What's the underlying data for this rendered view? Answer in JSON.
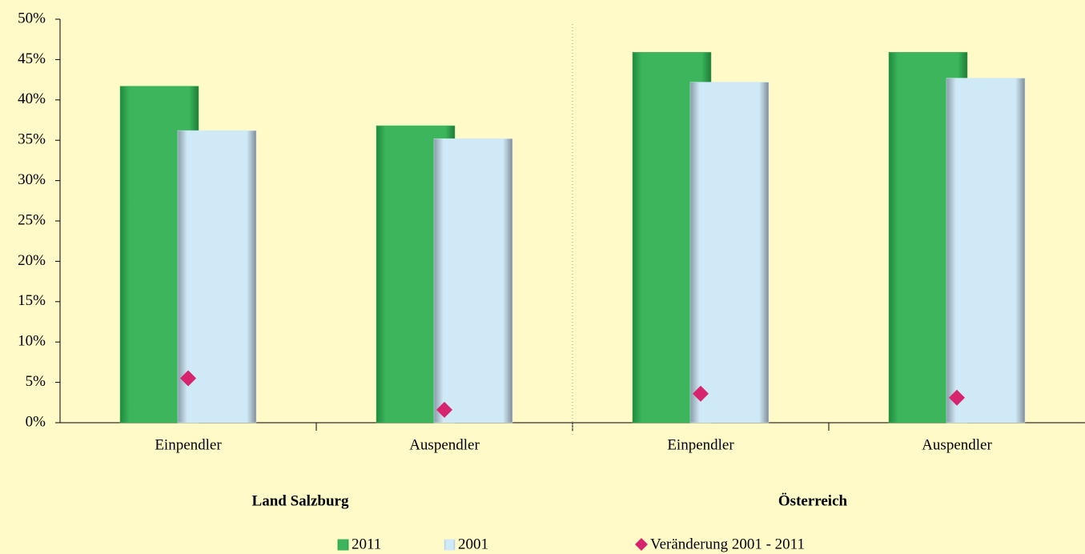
{
  "chart_data": {
    "type": "bar",
    "categories": [
      "Einpendler",
      "Auspendler",
      "Einpendler",
      "Auspendler"
    ],
    "groups": [
      "Land Salzburg",
      "Österreich"
    ],
    "series": [
      {
        "name": "2011",
        "color": "#3cb55c",
        "values": [
          41.7,
          36.8,
          45.9,
          45.9
        ]
      },
      {
        "name": "2001",
        "color": "#cfe9f7",
        "values": [
          36.2,
          35.2,
          42.2,
          42.7
        ]
      },
      {
        "name": "Veränderung 2001 - 2011",
        "color": "#d6246e",
        "marker": "diamond",
        "values": [
          5.5,
          1.6,
          3.6,
          3.1
        ]
      }
    ],
    "ylim": [
      0,
      50
    ],
    "yticks": [
      {
        "value": 0,
        "label": "0%"
      },
      {
        "value": 5,
        "label": "5%"
      },
      {
        "value": 10,
        "label": "10%"
      },
      {
        "value": 15,
        "label": "15%"
      },
      {
        "value": 20,
        "label": "20%"
      },
      {
        "value": 25,
        "label": "25%"
      },
      {
        "value": 30,
        "label": "30%"
      },
      {
        "value": 35,
        "label": "35%"
      },
      {
        "value": 40,
        "label": "40%"
      },
      {
        "value": 45,
        "label": "45%"
      },
      {
        "value": 50,
        "label": "50%"
      }
    ],
    "grid": false,
    "legend": "bottom"
  }
}
